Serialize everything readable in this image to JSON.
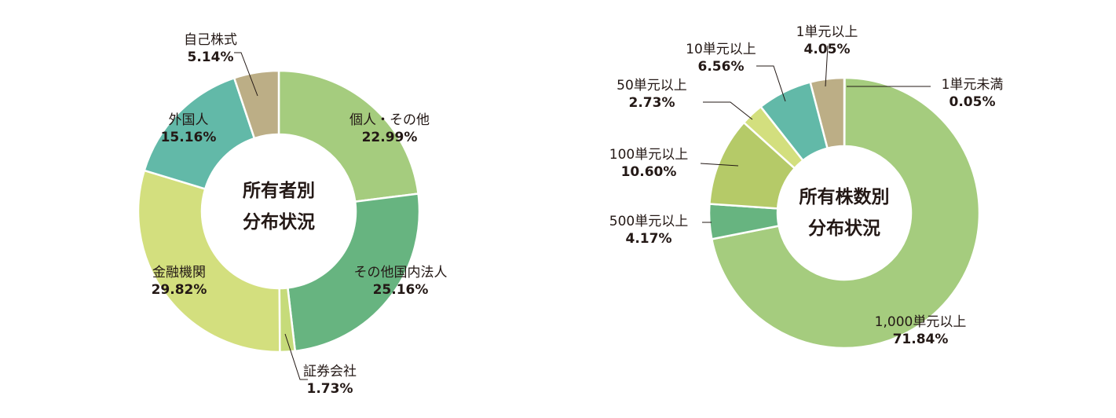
{
  "chart_data": [
    {
      "type": "pie",
      "center_label": [
        "所有者別",
        "分布状況"
      ],
      "slices": [
        {
          "label": "個人・その他",
          "value": 22.99,
          "value_text": "22.99%",
          "color": "#a5cc7e"
        },
        {
          "label": "その他国内法人",
          "value": 25.16,
          "value_text": "25.16%",
          "color": "#67b480"
        },
        {
          "label": "証券会社",
          "value": 1.73,
          "value_text": "1.73%",
          "color": "#c6db7a"
        },
        {
          "label": "金融機関",
          "value": 29.82,
          "value_text": "29.82%",
          "color": "#d3df7e"
        },
        {
          "label": "外国人",
          "value": 15.16,
          "value_text": "15.16%",
          "color": "#62b9a8"
        },
        {
          "label": "自己株式",
          "value": 5.14,
          "value_text": "5.14%",
          "color": "#bcae86"
        }
      ]
    },
    {
      "type": "pie",
      "center_label": [
        "所有株数別",
        "分布状況"
      ],
      "slices": [
        {
          "label": "1単元未満",
          "value": 0.05,
          "value_text": "0.05%",
          "color": "#3e82a8"
        },
        {
          "label": "1,000単元以上",
          "value": 71.84,
          "value_text": "71.84%",
          "color": "#a5cc7e"
        },
        {
          "label": "500単元以上",
          "value": 4.17,
          "value_text": "4.17%",
          "color": "#67b480"
        },
        {
          "label": "100単元以上",
          "value": 10.6,
          "value_text": "10.60%",
          "color": "#b5ca68"
        },
        {
          "label": "50単元以上",
          "value": 2.73,
          "value_text": "2.73%",
          "color": "#d3df7e"
        },
        {
          "label": "10単元以上",
          "value": 6.56,
          "value_text": "6.56%",
          "color": "#62b9a8"
        },
        {
          "label": "1単元以上",
          "value": 4.05,
          "value_text": "4.05%",
          "color": "#bcae86"
        }
      ]
    }
  ]
}
